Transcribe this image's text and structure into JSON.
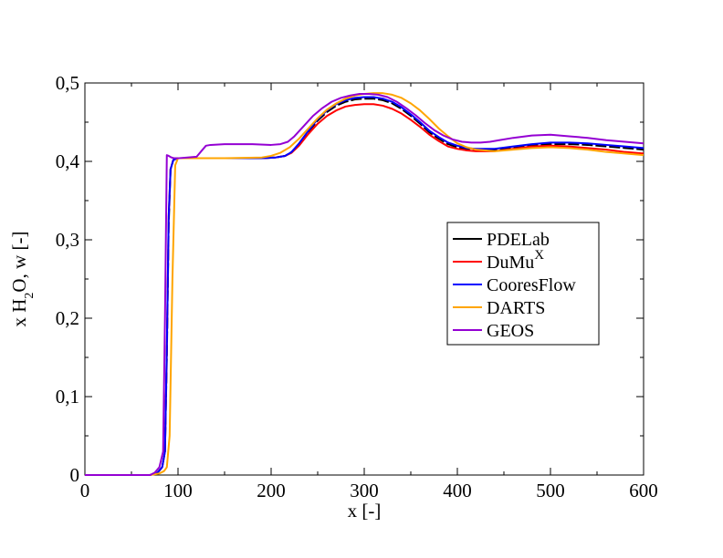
{
  "chart_data": {
    "type": "line",
    "title": "",
    "xlabel": "x [-]",
    "ylabel": {
      "prefix": "x H",
      "sub1": "2",
      "mid": "O, w",
      "suffix": " [-]"
    },
    "xlim": [
      0,
      600
    ],
    "ylim": [
      0,
      0.5
    ],
    "xticks": [
      0,
      100,
      200,
      300,
      400,
      500,
      600
    ],
    "xtick_labels": [
      "0",
      "100",
      "200",
      "300",
      "400",
      "500",
      "600"
    ],
    "yticks": [
      0,
      0.1,
      0.2,
      0.3,
      0.4,
      0.5
    ],
    "ytick_labels": [
      "0",
      "0,1",
      "0,2",
      "0,3",
      "0,4",
      "0,5"
    ],
    "grid": false,
    "legend_position": "right",
    "series": [
      {
        "name": "PDELab",
        "label_html": {
          "base": "PDELab",
          "sup": ""
        },
        "color": "#000000",
        "dashed": true,
        "x": [
          0,
          70,
          78,
          83,
          86,
          88,
          90,
          92,
          95,
          100,
          150,
          190,
          205,
          215,
          222,
          230,
          240,
          250,
          260,
          270,
          280,
          290,
          300,
          310,
          320,
          330,
          340,
          350,
          360,
          370,
          380,
          390,
          400,
          410,
          420,
          430,
          440,
          460,
          480,
          500,
          520,
          540,
          560,
          580,
          600
        ],
        "y": [
          0,
          0,
          0.003,
          0.01,
          0.03,
          0.15,
          0.32,
          0.39,
          0.402,
          0.404,
          0.404,
          0.404,
          0.405,
          0.407,
          0.412,
          0.422,
          0.438,
          0.452,
          0.463,
          0.471,
          0.476,
          0.479,
          0.48,
          0.48,
          0.478,
          0.474,
          0.467,
          0.458,
          0.448,
          0.437,
          0.429,
          0.422,
          0.418,
          0.415,
          0.414,
          0.414,
          0.414,
          0.417,
          0.42,
          0.422,
          0.422,
          0.421,
          0.419,
          0.417,
          0.415
        ]
      },
      {
        "name": "DuMu",
        "label_html": {
          "base": "DuMu",
          "sup": "X"
        },
        "color": "#ff0000",
        "dashed": false,
        "x": [
          0,
          70,
          78,
          83,
          86,
          88,
          90,
          92,
          95,
          100,
          150,
          190,
          205,
          215,
          222,
          230,
          240,
          250,
          260,
          270,
          280,
          290,
          300,
          310,
          320,
          330,
          340,
          350,
          360,
          370,
          380,
          390,
          400,
          410,
          420,
          430,
          440,
          460,
          480,
          500,
          520,
          540,
          560,
          580,
          600
        ],
        "y": [
          0,
          0,
          0.003,
          0.01,
          0.03,
          0.16,
          0.33,
          0.39,
          0.402,
          0.404,
          0.404,
          0.404,
          0.405,
          0.407,
          0.411,
          0.42,
          0.435,
          0.448,
          0.458,
          0.465,
          0.47,
          0.472,
          0.473,
          0.473,
          0.471,
          0.467,
          0.461,
          0.453,
          0.444,
          0.434,
          0.426,
          0.419,
          0.416,
          0.414,
          0.413,
          0.413,
          0.413,
          0.416,
          0.419,
          0.42,
          0.419,
          0.417,
          0.415,
          0.412,
          0.41
        ]
      },
      {
        "name": "CooresFlow",
        "label_html": {
          "base": "CooresFlow",
          "sup": ""
        },
        "color": "#0000ff",
        "dashed": false,
        "x": [
          0,
          70,
          78,
          83,
          86,
          88,
          90,
          92,
          95,
          100,
          150,
          190,
          205,
          215,
          222,
          230,
          240,
          250,
          260,
          270,
          280,
          290,
          300,
          310,
          320,
          330,
          340,
          350,
          360,
          370,
          380,
          390,
          400,
          410,
          420,
          430,
          440,
          460,
          480,
          500,
          520,
          540,
          560,
          580,
          600
        ],
        "y": [
          0,
          0,
          0.003,
          0.01,
          0.03,
          0.16,
          0.33,
          0.39,
          0.402,
          0.404,
          0.404,
          0.404,
          0.405,
          0.407,
          0.412,
          0.423,
          0.439,
          0.454,
          0.465,
          0.473,
          0.478,
          0.481,
          0.482,
          0.482,
          0.48,
          0.476,
          0.469,
          0.46,
          0.45,
          0.439,
          0.431,
          0.424,
          0.42,
          0.417,
          0.416,
          0.416,
          0.416,
          0.419,
          0.422,
          0.424,
          0.424,
          0.423,
          0.421,
          0.419,
          0.417
        ]
      },
      {
        "name": "DARTS",
        "label_html": {
          "base": "DARTS",
          "sup": ""
        },
        "color": "#ffa500",
        "dashed": false,
        "x": [
          0,
          70,
          80,
          85,
          88,
          91,
          94,
          97,
          100,
          150,
          190,
          200,
          210,
          220,
          230,
          240,
          250,
          260,
          270,
          280,
          290,
          300,
          310,
          320,
          330,
          340,
          350,
          360,
          370,
          380,
          390,
          400,
          410,
          420,
          430,
          440,
          460,
          480,
          500,
          520,
          540,
          560,
          580,
          600
        ],
        "y": [
          0,
          0,
          0.002,
          0.005,
          0.01,
          0.05,
          0.25,
          0.395,
          0.404,
          0.404,
          0.405,
          0.407,
          0.411,
          0.418,
          0.429,
          0.442,
          0.455,
          0.466,
          0.474,
          0.48,
          0.484,
          0.486,
          0.487,
          0.487,
          0.485,
          0.481,
          0.474,
          0.465,
          0.454,
          0.442,
          0.432,
          0.423,
          0.418,
          0.415,
          0.414,
          0.413,
          0.415,
          0.417,
          0.418,
          0.417,
          0.415,
          0.412,
          0.41,
          0.408
        ]
      },
      {
        "name": "GEOS",
        "label_html": {
          "base": "GEOS",
          "sup": ""
        },
        "color": "#9400d3",
        "dashed": false,
        "x": [
          0,
          70,
          75,
          80,
          84,
          86,
          88,
          90,
          93,
          96,
          100,
          110,
          120,
          125,
          130,
          135,
          150,
          180,
          200,
          210,
          218,
          225,
          235,
          245,
          255,
          265,
          275,
          285,
          295,
          305,
          315,
          325,
          335,
          345,
          355,
          365,
          375,
          385,
          395,
          405,
          415,
          425,
          435,
          445,
          460,
          480,
          500,
          520,
          540,
          560,
          580,
          600
        ],
        "y": [
          0,
          0,
          0.003,
          0.01,
          0.03,
          0.2,
          0.408,
          0.407,
          0.405,
          0.404,
          0.404,
          0.405,
          0.406,
          0.413,
          0.42,
          0.421,
          0.422,
          0.422,
          0.421,
          0.422,
          0.425,
          0.432,
          0.445,
          0.458,
          0.468,
          0.476,
          0.481,
          0.484,
          0.486,
          0.486,
          0.485,
          0.482,
          0.476,
          0.468,
          0.459,
          0.449,
          0.44,
          0.433,
          0.428,
          0.425,
          0.424,
          0.424,
          0.425,
          0.427,
          0.43,
          0.433,
          0.434,
          0.432,
          0.43,
          0.427,
          0.425,
          0.423
        ]
      }
    ]
  }
}
